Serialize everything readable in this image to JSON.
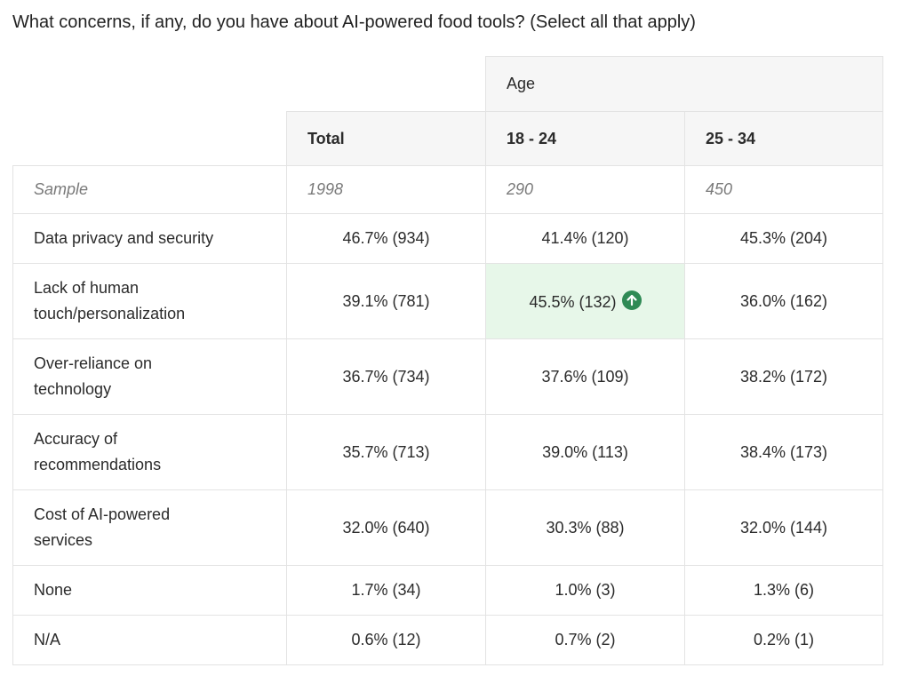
{
  "title": "What concerns, if any, do you have about AI-powered food tools? (Select all that apply)",
  "table": {
    "group_header": "Age",
    "columns": [
      "Total",
      "18 - 24",
      "25 - 34"
    ],
    "sample": {
      "label": "Sample",
      "cells": [
        "1998",
        "290",
        "450"
      ]
    },
    "rows": [
      {
        "label": "Data privacy and security",
        "cells": [
          "46.7% (934)",
          "41.4% (120)",
          "45.3% (204)"
        ]
      },
      {
        "label": "Lack of human touch/personalization",
        "cells": [
          "39.1% (781)",
          "45.5% (132)",
          "36.0% (162)"
        ]
      },
      {
        "label": "Over-reliance on technology",
        "cells": [
          "36.7% (734)",
          "37.6% (109)",
          "38.2% (172)"
        ]
      },
      {
        "label": "Accuracy of recommendations",
        "cells": [
          "35.7% (713)",
          "39.0% (113)",
          "38.4% (173)"
        ]
      },
      {
        "label": "Cost of AI-powered services",
        "cells": [
          "32.0% (640)",
          "30.3% (88)",
          "32.0% (144)"
        ]
      },
      {
        "label": "None",
        "cells": [
          "1.7% (34)",
          "1.0% (3)",
          "1.3% (6)"
        ]
      },
      {
        "label": "N/A",
        "cells": [
          "0.6% (12)",
          "0.7% (2)",
          "0.2% (1)"
        ]
      }
    ],
    "highlight": {
      "row": 1,
      "column": 1
    }
  }
}
